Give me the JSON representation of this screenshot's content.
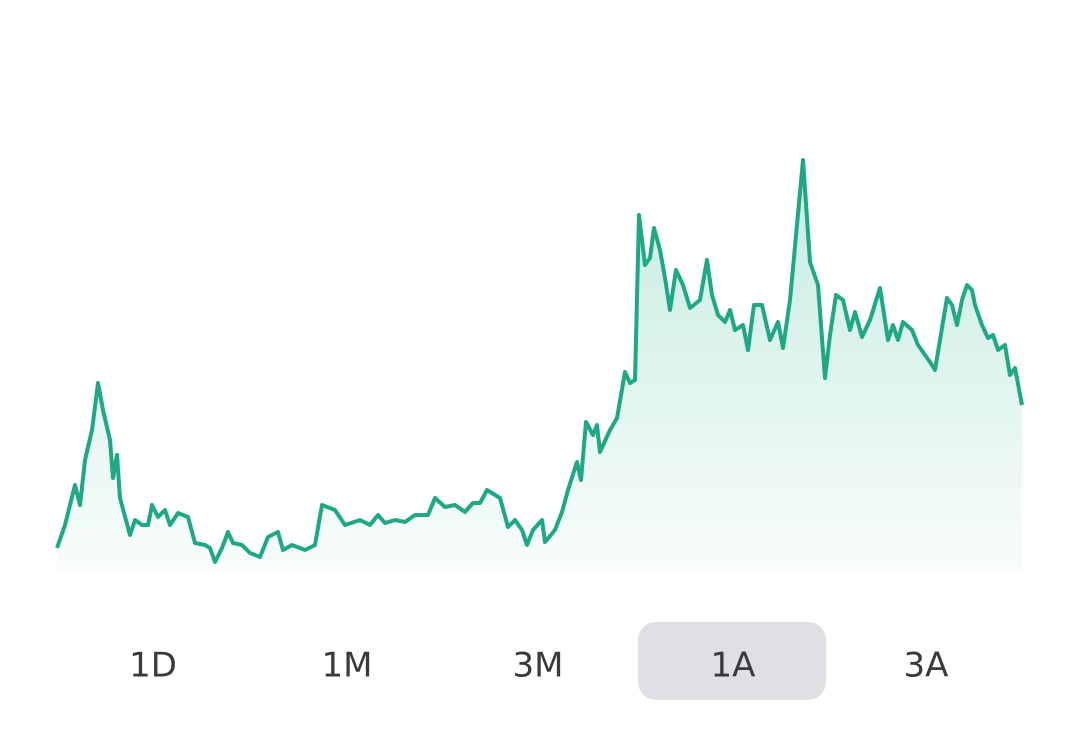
{
  "chart_data": {
    "type": "area",
    "color": "#1fa884",
    "x": [
      0,
      8,
      18,
      23,
      28,
      35,
      41,
      46,
      53,
      56,
      60,
      63,
      73,
      78,
      85,
      91,
      95,
      101,
      108,
      113,
      121,
      131,
      138,
      148,
      153,
      158,
      165,
      171,
      176,
      185,
      193,
      203,
      211,
      221,
      226,
      235,
      248,
      258,
      265,
      278,
      288,
      303,
      313,
      321,
      328,
      338,
      348,
      358,
      371,
      378,
      388,
      398,
      408,
      416,
      423,
      430,
      443,
      451,
      458,
      465,
      470,
      476,
      485,
      488,
      498,
      505,
      511,
      520,
      524,
      529,
      536,
      540,
      543,
      553,
      560,
      568,
      573,
      578,
      582,
      588,
      593,
      597,
      603,
      608,
      613,
      619,
      626,
      633,
      643,
      650,
      655,
      661,
      668,
      673,
      678,
      686,
      691,
      697,
      705,
      713,
      721,
      726,
      733,
      746,
      753,
      761,
      768,
      773,
      779,
      786,
      793,
      798,
      805,
      813,
      823,
      831,
      836,
      841,
      846,
      855,
      861,
      873,
      878,
      883,
      890,
      895,
      900,
      905,
      910,
      915,
      918,
      925,
      931,
      936,
      941,
      948,
      953,
      958,
      965
    ],
    "values": [
      22,
      45,
      85,
      65,
      110,
      140,
      187,
      160,
      130,
      92,
      115,
      72,
      35,
      50,
      45,
      45,
      65,
      53,
      60,
      45,
      57,
      53,
      27,
      25,
      22,
      8,
      22,
      38,
      27,
      25,
      17,
      13,
      33,
      38,
      20,
      25,
      20,
      25,
      65,
      60,
      45,
      50,
      45,
      55,
      47,
      50,
      48,
      55,
      55,
      72,
      63,
      65,
      58,
      67,
      67,
      80,
      72,
      43,
      50,
      40,
      25,
      40,
      50,
      28,
      40,
      58,
      80,
      108,
      90,
      148,
      135,
      145,
      118,
      140,
      152,
      198,
      187,
      190,
      355,
      305,
      312,
      342,
      320,
      292,
      260,
      300,
      285,
      262,
      270,
      310,
      275,
      255,
      248,
      260,
      240,
      245,
      220,
      265,
      265,
      230,
      248,
      222,
      270,
      410,
      308,
      285,
      192,
      235,
      275,
      270,
      240,
      258,
      233,
      250,
      282,
      230,
      245,
      230,
      248,
      240,
      225,
      208,
      200,
      230,
      272,
      265,
      245,
      270,
      285,
      280,
      265,
      245,
      232,
      235,
      220,
      225,
      195,
      202,
      165
    ],
    "xlim": [
      0,
      965
    ],
    "ylim": [
      0,
      420
    ]
  },
  "buttons": [
    "1D",
    "1M",
    "3M",
    "1A",
    "3A"
  ],
  "selected_index": 3
}
